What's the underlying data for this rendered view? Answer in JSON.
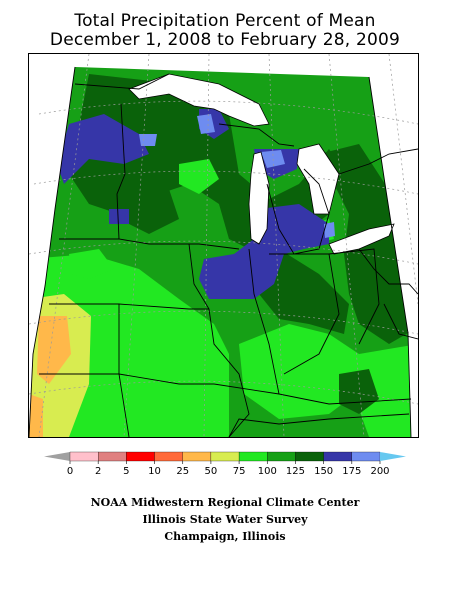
{
  "title": {
    "line1": "Total Precipitation Percent of Mean",
    "line2": "December 1, 2008 to February 28, 2009"
  },
  "map": {
    "region": "Midwestern United States",
    "description_colors": {
      "outside": "#ffffff",
      "lakes": "#ffffff",
      "grid": "#9a9a9a"
    }
  },
  "legend": {
    "ticks": [
      "0",
      "2",
      "5",
      "10",
      "25",
      "50",
      "75",
      "100",
      "125",
      "150",
      "175",
      "200"
    ],
    "bins": [
      {
        "from": "0",
        "to": "2",
        "color": "#ffc0cb"
      },
      {
        "from": "2",
        "to": "5",
        "color": "#e08080"
      },
      {
        "from": "5",
        "to": "10",
        "color": "#ff0000"
      },
      {
        "from": "10",
        "to": "25",
        "color": "#ff6a3a"
      },
      {
        "from": "25",
        "to": "50",
        "color": "#ffb84a"
      },
      {
        "from": "50",
        "to": "75",
        "color": "#d8ec50"
      },
      {
        "from": "75",
        "to": "100",
        "color": "#22e822"
      },
      {
        "from": "100",
        "to": "125",
        "color": "#16a016"
      },
      {
        "from": "125",
        "to": "150",
        "color": "#0a620a"
      },
      {
        "from": "150",
        "to": "175",
        "color": "#3636a8"
      },
      {
        "from": "175",
        "to": "200",
        "color": "#6e8cf0"
      }
    ],
    "below_color": "#a0a0a0",
    "above_color": "#66c8f0"
  },
  "footer": {
    "line1": "NOAA Midwestern Regional Climate Center",
    "line2": "Illinois State Water Survey",
    "line3": "Champaign, Illinois"
  }
}
